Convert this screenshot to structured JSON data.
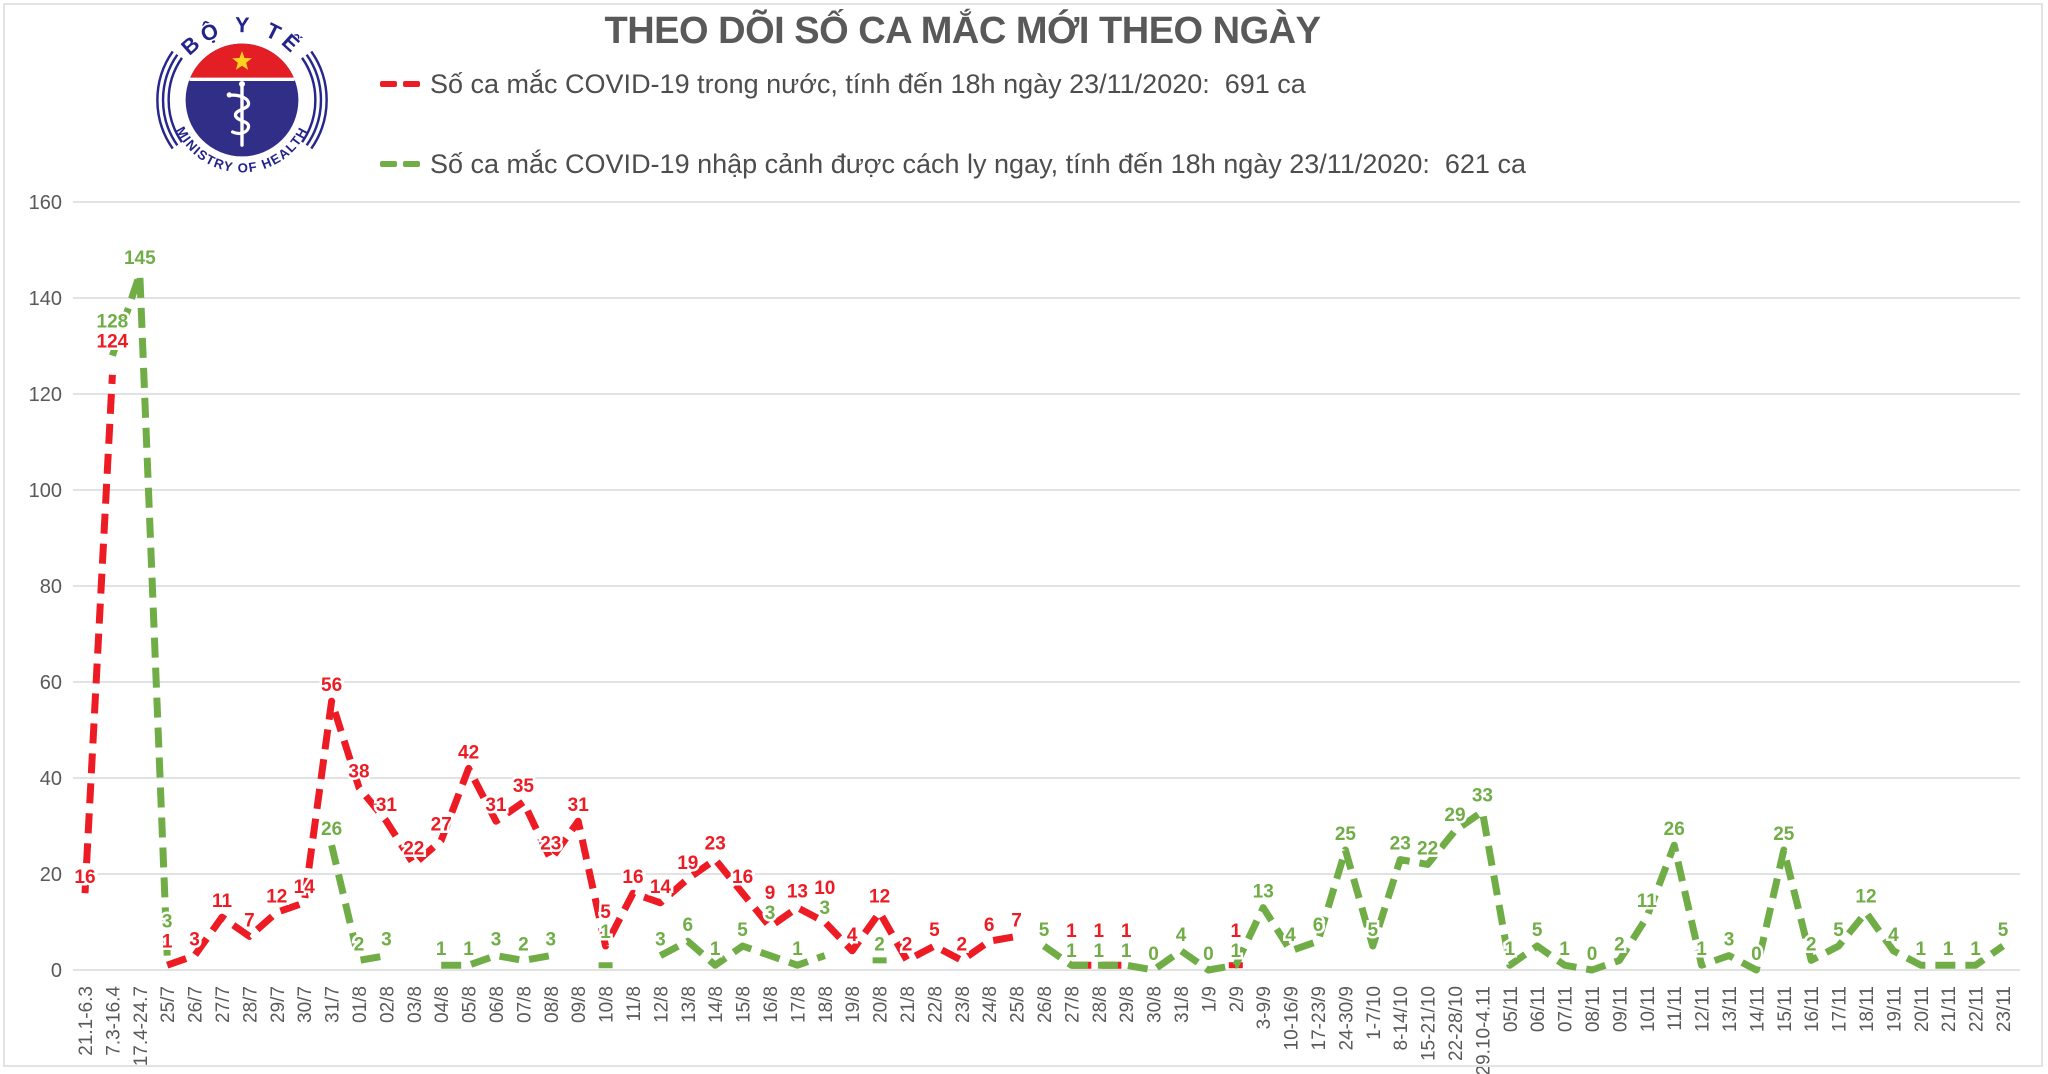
{
  "header": {
    "title": "THEO DÕI SỐ CA MẮC MỚI THEO NGÀY"
  },
  "logo": {
    "top_text": "BỘ Y TẾ",
    "bottom_text": "MINISTRY OF HEALTH",
    "star_color": "#ffd21e",
    "red_color": "#e31e25",
    "navy_color": "#312e87"
  },
  "legend": {
    "items": [
      {
        "label": "Số ca mắc COVID-19 trong nước, tính đến 18h ngày 23/11/2020:  691 ca",
        "color": "#ed1c24"
      },
      {
        "label": "Số ca mắc COVID-19 nhập cảnh được cách ly ngay, tính đến 18h ngày 23/11/2020:  621 ca",
        "color": "#70ad47"
      }
    ]
  },
  "chart_data": {
    "type": "line",
    "title": "THEO DÕI SỐ CA MẮC MỚI THEO NGÀY",
    "xlabel": "",
    "ylabel": "",
    "ylim": [
      0,
      160
    ],
    "yticks": [
      0,
      20,
      40,
      60,
      80,
      100,
      120,
      140,
      160
    ],
    "grid": true,
    "legend_position": "top",
    "x_label_rotation": -90,
    "line_style": "dashed",
    "categories": [
      "21.1-6.3",
      "7.3-16.4",
      "17.4-24.7",
      "25/7",
      "26/7",
      "27/7",
      "28/7",
      "29/7",
      "30/7",
      "31/7",
      "01/8",
      "02/8",
      "03/8",
      "04/8",
      "05/8",
      "06/8",
      "07/8",
      "08/8",
      "09/8",
      "10/8",
      "11/8",
      "12/8",
      "13/8",
      "14/8",
      "15/8",
      "16/8",
      "17/8",
      "18/8",
      "19/8",
      "20/8",
      "21/8",
      "22/8",
      "23/8",
      "24/8",
      "25/8",
      "26/8",
      "27/8",
      "28/8",
      "29/8",
      "30/8",
      "31/8",
      "1/9",
      "2/9",
      "3-9/9",
      "10-16/9",
      "17-23/9",
      "24-30/9",
      "1-7/10",
      "8-14/10",
      "15-21/10",
      "22-28/10",
      "29.10-4.11",
      "05/11",
      "06/11",
      "07/11",
      "08/11",
      "09/11",
      "10/11",
      "11/11",
      "12/11",
      "13/11",
      "14/11",
      "15/11",
      "16/11",
      "17/11",
      "18/11",
      "19/11",
      "20/11",
      "21/11",
      "22/11",
      "23/11"
    ],
    "series": [
      {
        "name": "Số ca mắc COVID-19 trong nước",
        "color": "#ed1c24",
        "total": 691,
        "values": [
          16,
          124,
          null,
          1,
          3,
          11,
          7,
          12,
          14,
          56,
          38,
          31,
          22,
          27,
          42,
          31,
          35,
          23,
          31,
          5,
          16,
          14,
          19,
          23,
          16,
          9,
          13,
          10,
          4,
          12,
          2,
          5,
          2,
          6,
          7,
          null,
          1,
          1,
          1,
          null,
          null,
          null,
          1,
          null,
          null,
          null,
          null,
          null,
          null,
          null,
          null,
          null,
          null,
          null,
          null,
          null,
          null,
          null,
          null,
          null,
          null,
          null,
          null,
          null,
          null,
          null,
          null,
          null,
          null,
          null,
          null
        ]
      },
      {
        "name": "Số ca mắc COVID-19 nhập cảnh được cách ly ngay",
        "color": "#70ad47",
        "total": 621,
        "values": [
          null,
          128,
          145,
          3,
          null,
          null,
          null,
          null,
          null,
          26,
          2,
          3,
          null,
          1,
          1,
          3,
          2,
          3,
          null,
          1,
          null,
          3,
          6,
          1,
          5,
          3,
          1,
          3,
          null,
          2,
          null,
          null,
          null,
          null,
          null,
          5,
          1,
          1,
          1,
          0,
          4,
          0,
          1,
          13,
          4,
          6,
          25,
          5,
          23,
          22,
          29,
          33,
          1,
          5,
          1,
          0,
          2,
          11,
          26,
          1,
          3,
          0,
          25,
          2,
          5,
          12,
          4,
          1,
          1,
          1,
          5
        ]
      }
    ],
    "colors": {
      "gridline": "#d9d9d9",
      "axis_text": "#595959",
      "frame": "#e3e3e3"
    }
  }
}
